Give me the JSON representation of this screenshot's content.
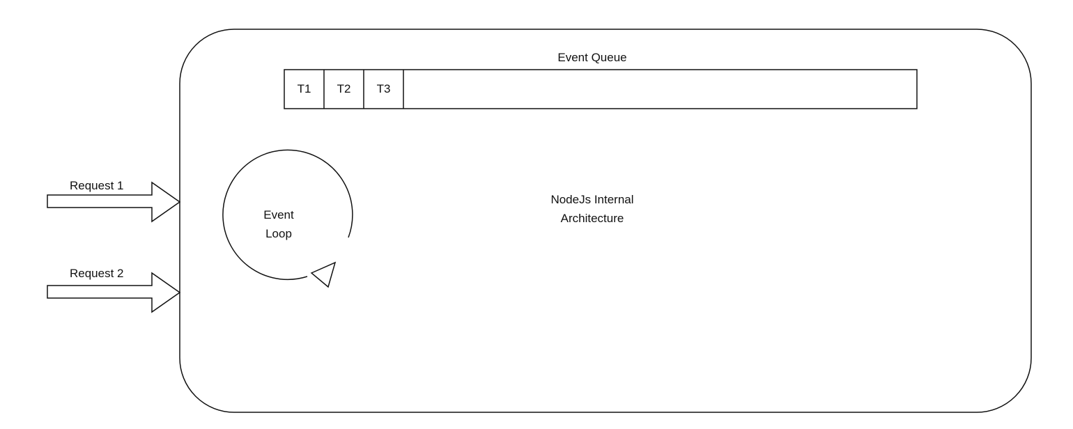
{
  "container": {
    "label_line1": "NodeJs Internal",
    "label_line2": "Architecture"
  },
  "event_queue": {
    "title": "Event Queue",
    "slots": [
      "T1",
      "T2",
      "T3"
    ]
  },
  "event_loop": {
    "label_line1": "Event",
    "label_line2": "Loop"
  },
  "requests": [
    {
      "label": "Request 1"
    },
    {
      "label": "Request 2"
    }
  ],
  "colors": {
    "stroke": "#111111",
    "background": "#ffffff"
  }
}
